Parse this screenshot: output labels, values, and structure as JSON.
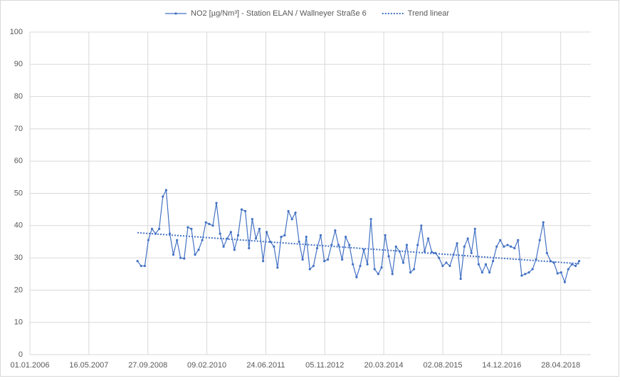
{
  "chart_data": {
    "type": "line",
    "xlim": [
      "01.01.2006",
      "08.01.2019"
    ],
    "xticks": [
      "01.01.2006",
      "16.05.2007",
      "27.09.2008",
      "09.02.2010",
      "24.06.2011",
      "05.11.2012",
      "20.03.2014",
      "02.08.2015",
      "14.12.2016",
      "28.04.2018"
    ],
    "ylim": [
      0,
      100
    ],
    "yticks": [
      0,
      10,
      20,
      30,
      40,
      50,
      60,
      70,
      80,
      90,
      100
    ],
    "grid": true,
    "series": [
      {
        "name": "NO2 [µg/Nm³] - Station ELAN / Wallneyer Straße 6",
        "color": "#4472c4",
        "style": "solid",
        "markers": true,
        "x": [
          "01.07.2008",
          "01.08.2008",
          "01.09.2008",
          "01.10.2008",
          "01.11.2008",
          "01.12.2008",
          "01.01.2009",
          "01.02.2009",
          "01.03.2009",
          "01.04.2009",
          "01.05.2009",
          "01.06.2009",
          "01.07.2009",
          "01.08.2009",
          "01.09.2009",
          "01.10.2009",
          "01.11.2009",
          "01.12.2009",
          "01.01.2010",
          "01.02.2010",
          "01.03.2010",
          "01.04.2010",
          "01.05.2010",
          "01.06.2010",
          "01.07.2010",
          "01.08.2010",
          "01.09.2010",
          "01.10.2010",
          "01.11.2010",
          "01.12.2010",
          "01.01.2011",
          "01.02.2011",
          "01.03.2011",
          "01.04.2011",
          "01.05.2011",
          "01.06.2011",
          "01.07.2011",
          "01.08.2011",
          "01.09.2011",
          "01.10.2011",
          "01.11.2011",
          "01.12.2011",
          "01.01.2012",
          "01.02.2012",
          "01.03.2012",
          "01.04.2012",
          "01.05.2012",
          "01.06.2012",
          "01.07.2012",
          "01.08.2012",
          "01.09.2012",
          "01.10.2012",
          "01.11.2012",
          "01.12.2012",
          "01.01.2013",
          "01.02.2013",
          "01.03.2013",
          "01.04.2013",
          "01.05.2013",
          "01.06.2013",
          "01.07.2013",
          "01.08.2013",
          "01.09.2013",
          "01.10.2013",
          "01.11.2013",
          "01.12.2013",
          "01.01.2014",
          "01.02.2014",
          "01.03.2014",
          "01.04.2014",
          "01.05.2014",
          "01.06.2014",
          "01.07.2014",
          "01.08.2014",
          "01.09.2014",
          "01.10.2014",
          "01.11.2014",
          "01.12.2014",
          "01.01.2015",
          "01.02.2015",
          "01.03.2015",
          "01.04.2015",
          "01.05.2015",
          "01.06.2015",
          "01.07.2015",
          "01.08.2015",
          "01.09.2015",
          "01.10.2015",
          "01.11.2015",
          "01.12.2015",
          "01.01.2016",
          "01.02.2016",
          "01.03.2016",
          "01.04.2016",
          "01.05.2016",
          "01.06.2016",
          "01.07.2016",
          "01.08.2016",
          "01.09.2016",
          "01.10.2016",
          "01.11.2016",
          "01.12.2016",
          "01.01.2017",
          "01.02.2017",
          "01.03.2017",
          "01.04.2017",
          "01.05.2017",
          "01.06.2017",
          "01.07.2017",
          "01.08.2017",
          "01.09.2017",
          "01.10.2017",
          "01.11.2017",
          "01.12.2017",
          "01.01.2018",
          "01.02.2018",
          "01.03.2018",
          "01.04.2018",
          "01.05.2018",
          "01.06.2018",
          "01.07.2018",
          "01.08.2018",
          "01.09.2018",
          "01.10.2018"
        ],
        "values": [
          29,
          27.5,
          27.5,
          35.5,
          39,
          37.5,
          39,
          49,
          51,
          37.5,
          31,
          35.5,
          30,
          29.8,
          39.5,
          39,
          31,
          32.5,
          35.5,
          41,
          40.5,
          40,
          47,
          37.5,
          33.5,
          36,
          38,
          32.5,
          37,
          45,
          44.5,
          33,
          42,
          36,
          39,
          29,
          38,
          35,
          33.5,
          27,
          36.5,
          37,
          44.5,
          42,
          44,
          35,
          29.5,
          36.5,
          26.5,
          27.5,
          33,
          37,
          29,
          29.5,
          34,
          38.5,
          34,
          29.5,
          36.5,
          34,
          28,
          24,
          27.5,
          32.5,
          28,
          42,
          26.5,
          25,
          27,
          37,
          30.5,
          25,
          33.5,
          32,
          28.5,
          34,
          25.5,
          26.5,
          34,
          40,
          32,
          36,
          31.8,
          31.5,
          30,
          27.5,
          28.5,
          27.5,
          31,
          34.5,
          23.5,
          33.5,
          36,
          31.5,
          39,
          28,
          25.5,
          28,
          25.5,
          29,
          33.5,
          35.5,
          33.5,
          34,
          33.5,
          33,
          35.5,
          24.5,
          25,
          25.5,
          26.5,
          29.5,
          35.5,
          41,
          31.5,
          29,
          28.5,
          25.2,
          25.5,
          22.5,
          26.5,
          28,
          27.5,
          29
        ]
      },
      {
        "name": "Trend linear",
        "color": "#4472c4",
        "style": "dotted",
        "markers": false,
        "x": [
          "01.07.2008",
          "01.10.2018"
        ],
        "values": [
          37.8,
          28.2
        ]
      }
    ]
  }
}
